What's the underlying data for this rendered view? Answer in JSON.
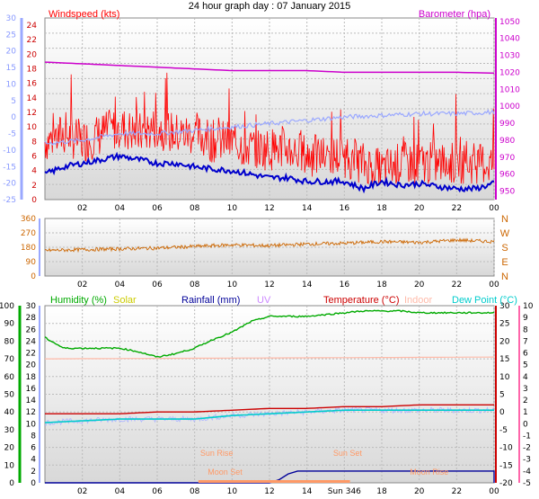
{
  "title": "24 hour graph day : 07 January 2015",
  "x_ticks": [
    "02",
    "04",
    "06",
    "08",
    "10",
    "12",
    "14",
    "16",
    "18",
    "20",
    "22",
    "00"
  ],
  "colors": {
    "wind": "#ff0000",
    "baro": "#cc00cc",
    "gust_avg": "#0000cc",
    "wind_temp": "#9aa8ff",
    "dir": "#cc6600",
    "humidity": "#00aa00",
    "solar": "#cccc00",
    "rain": "#000099",
    "uv": "#cc88ff",
    "temp": "#cc0000",
    "indoor": "#ffbbaa",
    "dew": "#00cccc",
    "sun": "#ff9966",
    "moon": "#ff9966"
  },
  "chart_data": [
    {
      "type": "line",
      "title": "Wind / Barometer",
      "labels": {
        "windspeed": "Windspeed (kts)",
        "barometer": "Barometer (hpa)"
      },
      "x_hours": [
        0,
        2,
        4,
        6,
        8,
        10,
        12,
        14,
        16,
        18,
        20,
        22,
        24
      ],
      "y_left_red_ticks": [
        0,
        2,
        4,
        6,
        8,
        10,
        12,
        14,
        16,
        18,
        20,
        22,
        24
      ],
      "y_left_blue_ticks": [
        -25,
        -20,
        -15,
        -10,
        -5,
        0,
        5,
        10,
        15,
        20,
        25,
        30
      ],
      "y_right_ticks": [
        950,
        960,
        970,
        980,
        990,
        1000,
        1010,
        1020,
        1030,
        1040,
        1050
      ],
      "ylim_wind": [
        0,
        25
      ],
      "ylim_baro": [
        945,
        1052
      ],
      "series": [
        {
          "name": "Windspeed (kts)",
          "x": [
            0,
            1,
            2,
            3,
            4,
            5,
            6,
            7,
            8,
            9,
            10,
            11,
            12,
            13,
            14,
            15,
            16,
            17,
            18,
            19,
            20,
            21,
            22,
            23,
            24
          ],
          "values": [
            8,
            9,
            8,
            9,
            10,
            9,
            10,
            9,
            9,
            8,
            8,
            7,
            7,
            7,
            6,
            6,
            6,
            5,
            4,
            5,
            5,
            5,
            5,
            5,
            5
          ]
        },
        {
          "name": "Barometer (hpa)",
          "x": [
            0,
            2,
            4,
            6,
            8,
            10,
            12,
            14,
            16,
            18,
            20,
            22,
            24
          ],
          "values": [
            1026,
            1025,
            1024,
            1023,
            1022,
            1021,
            1021,
            1021,
            1020,
            1020,
            1020,
            1020,
            1019.5
          ]
        },
        {
          "name": "Avg",
          "x": [
            0,
            1,
            2,
            3,
            4,
            5,
            6,
            7,
            8,
            9,
            10,
            11,
            12,
            13,
            14,
            15,
            16,
            17,
            18,
            19,
            20,
            21,
            22,
            23,
            24
          ],
          "values": [
            3.5,
            4.5,
            5,
            5.5,
            6,
            5.5,
            5,
            5,
            4.5,
            4.2,
            4,
            3.5,
            3,
            3,
            2.5,
            2.5,
            2.5,
            1.5,
            2.5,
            2,
            2.2,
            1.8,
            1.5,
            1.5,
            2.2
          ]
        },
        {
          "name": "Temp",
          "x": [
            0,
            2,
            4,
            6,
            8,
            10,
            12,
            14,
            16,
            18,
            20,
            22,
            24
          ],
          "values": [
            -8,
            -7,
            -5,
            -5,
            -4,
            -3,
            -2,
            -1,
            0,
            0.5,
            1,
            1,
            1.5
          ]
        }
      ]
    },
    {
      "type": "line",
      "title": "Wind direction",
      "y_left_ticks": [
        0,
        90,
        180,
        270,
        360
      ],
      "y_right_labels": [
        "N",
        "W",
        "S",
        "E",
        "N"
      ],
      "ylim": [
        0,
        360
      ],
      "series": [
        {
          "name": "Direction",
          "x": [
            0,
            2,
            4,
            6,
            8,
            10,
            12,
            14,
            16,
            18,
            20,
            22,
            24
          ],
          "values": [
            160,
            165,
            170,
            175,
            185,
            195,
            190,
            200,
            205,
            215,
            210,
            225,
            215
          ]
        }
      ]
    },
    {
      "type": "line",
      "title": "Humidity / Rain / Temperature",
      "labels": {
        "humidity": "Humidity (%)",
        "solar": "Solar",
        "rainfall": "Rainfall (mm)",
        "uv": "UV",
        "temperature": "Temperature (°C)",
        "indoor": "Indoor",
        "dew": "Dew Point (°C)"
      },
      "annotations": {
        "sun_rise": "Sun Rise",
        "sun_set": "Sun Set",
        "moon_set": "Moon Set",
        "moon_rise": "Moon Rise",
        "sun_marker": "Sun 346"
      },
      "y_humidity_ticks": [
        0,
        10,
        20,
        30,
        40,
        50,
        60,
        70,
        80,
        90,
        100
      ],
      "y_rain_ticks": [
        0,
        2,
        4,
        6,
        8,
        10,
        12,
        14,
        16,
        18,
        20,
        22,
        24,
        26,
        28,
        30
      ],
      "y_temp_ticks": [
        -20,
        -15,
        -10,
        -5,
        0,
        5,
        10,
        15,
        20,
        25,
        30
      ],
      "y_right_ticks": [
        -5,
        -4,
        -3,
        -2,
        -1,
        0,
        1,
        2,
        3,
        4,
        5,
        6,
        7,
        8,
        9,
        10
      ],
      "series": [
        {
          "name": "Humidity (%)",
          "x": [
            0,
            1,
            2,
            3,
            4,
            5,
            6,
            7,
            8,
            9,
            10,
            11,
            12,
            13,
            14,
            15,
            16,
            17,
            18,
            19,
            20,
            21,
            22,
            23,
            24
          ],
          "values": [
            82,
            76,
            76,
            76,
            76,
            74,
            71,
            73,
            76,
            81,
            85,
            91,
            94,
            94,
            94,
            95,
            96,
            97,
            97,
            97,
            96,
            96,
            96,
            96,
            96
          ]
        },
        {
          "name": "Rainfall (mm)",
          "x": [
            0,
            12,
            12.5,
            13,
            13.5,
            14,
            18,
            24
          ],
          "values": [
            0,
            0,
            0.5,
            1.5,
            2,
            2,
            2,
            2
          ]
        },
        {
          "name": "Temperature (°C)",
          "x": [
            0,
            2,
            4,
            6,
            8,
            10,
            12,
            14,
            16,
            18,
            20,
            22,
            24
          ],
          "values": [
            -0.5,
            -0.5,
            -0.5,
            0,
            0,
            0.5,
            1,
            1,
            1.5,
            1.5,
            2,
            2,
            2
          ]
        },
        {
          "name": "Dew Point (°C)",
          "x": [
            0,
            2,
            4,
            6,
            8,
            10,
            12,
            14,
            16,
            18,
            20,
            22,
            24
          ],
          "values": [
            -3,
            -2.5,
            -2,
            -2,
            -2,
            -1,
            -0.5,
            0,
            0.5,
            0.5,
            0.5,
            0.5,
            0.5
          ]
        },
        {
          "name": "Indoor",
          "x": [
            0,
            24
          ],
          "values": [
            5,
            5.5
          ]
        }
      ]
    }
  ]
}
